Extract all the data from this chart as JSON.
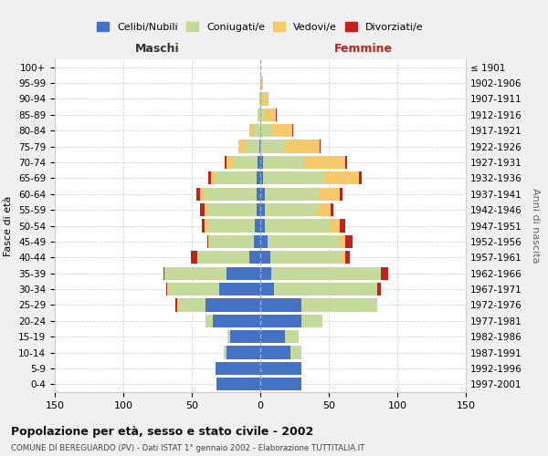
{
  "age_groups": [
    "0-4",
    "5-9",
    "10-14",
    "15-19",
    "20-24",
    "25-29",
    "30-34",
    "35-39",
    "40-44",
    "45-49",
    "50-54",
    "55-59",
    "60-64",
    "65-69",
    "70-74",
    "75-79",
    "80-84",
    "85-89",
    "90-94",
    "95-99",
    "100+"
  ],
  "birth_years": [
    "1997-2001",
    "1992-1996",
    "1987-1991",
    "1982-1986",
    "1977-1981",
    "1972-1976",
    "1967-1971",
    "1962-1966",
    "1957-1961",
    "1952-1956",
    "1947-1951",
    "1942-1946",
    "1937-1941",
    "1932-1936",
    "1927-1931",
    "1922-1926",
    "1917-1921",
    "1912-1916",
    "1907-1911",
    "1902-1906",
    "≤ 1901"
  ],
  "maschi": {
    "celibi": [
      32,
      33,
      25,
      22,
      35,
      40,
      30,
      25,
      8,
      5,
      4,
      3,
      3,
      3,
      2,
      1,
      0,
      0,
      0,
      0,
      0
    ],
    "coniugati": [
      0,
      0,
      2,
      2,
      5,
      20,
      38,
      45,
      38,
      32,
      35,
      35,
      38,
      30,
      18,
      10,
      5,
      2,
      1,
      0,
      0
    ],
    "vedovi": [
      0,
      0,
      0,
      0,
      0,
      1,
      0,
      0,
      0,
      1,
      2,
      3,
      3,
      3,
      5,
      5,
      3,
      0,
      0,
      0,
      0
    ],
    "divorziati": [
      0,
      0,
      0,
      0,
      0,
      1,
      1,
      1,
      5,
      1,
      2,
      3,
      3,
      2,
      1,
      0,
      0,
      0,
      0,
      0,
      0
    ]
  },
  "femmine": {
    "nubili": [
      30,
      30,
      22,
      18,
      30,
      30,
      10,
      8,
      7,
      5,
      3,
      3,
      3,
      2,
      2,
      0,
      0,
      0,
      0,
      0,
      0
    ],
    "coniugate": [
      0,
      0,
      8,
      10,
      15,
      55,
      75,
      80,
      52,
      52,
      48,
      38,
      40,
      45,
      30,
      18,
      8,
      3,
      1,
      0,
      0
    ],
    "vedove": [
      0,
      0,
      0,
      0,
      0,
      0,
      0,
      0,
      3,
      5,
      7,
      10,
      15,
      25,
      30,
      25,
      15,
      8,
      5,
      2,
      0
    ],
    "divorziate": [
      0,
      0,
      0,
      0,
      0,
      0,
      3,
      5,
      3,
      5,
      4,
      2,
      2,
      2,
      1,
      1,
      1,
      1,
      0,
      0,
      0
    ]
  },
  "colors": {
    "celibi_nubili": "#4472C4",
    "coniugati": "#C5D99B",
    "vedovi": "#F5C96A",
    "divorziati": "#C0231E"
  },
  "xlim": 150,
  "title": "Popolazione per età, sesso e stato civile - 2002",
  "subtitle": "COMUNE DI BEREGUARDO (PV) - Dati ISTAT 1° gennaio 2002 - Elaborazione TUTTITALIA.IT",
  "xlabel_left": "Maschi",
  "xlabel_right": "Femmine",
  "ylabel_left": "Fasce di età",
  "ylabel_right": "Anni di nascita",
  "legend_labels": [
    "Celibi/Nubili",
    "Coniugati/e",
    "Vedovi/e",
    "Divorziati/e"
  ],
  "bg_color": "#f0f0f0",
  "plot_bg": "#ffffff"
}
